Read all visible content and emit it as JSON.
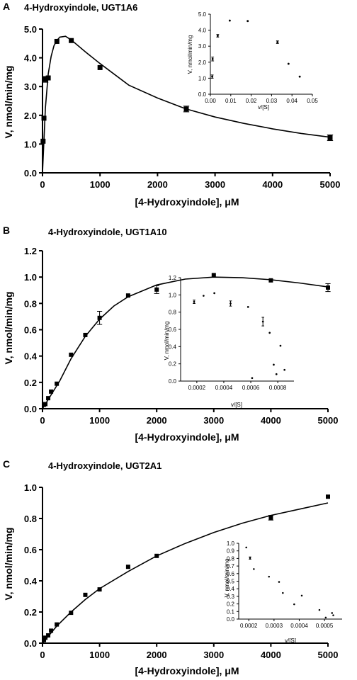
{
  "figure": {
    "panels": [
      {
        "letter": "A",
        "title": "4-Hydroxyindole, UGT1A6",
        "main": {
          "xlabel": "[4-Hydroxyindole], μM",
          "ylabel": "V, nmol/min/mg",
          "xticks": [
            "0",
            "1000",
            "2000",
            "3000",
            "4000",
            "5000"
          ],
          "yticks": [
            "0.0",
            "1.0",
            "2.0",
            "3.0",
            "4.0",
            "5.0"
          ]
        },
        "inset": {
          "xlabel": "v/[S]",
          "ylabel": "V, nmol/min/mg",
          "xticks": [
            "0.00",
            "0.01",
            "0.02",
            "0.03",
            "0.04",
            "0.05"
          ],
          "yticks": [
            "0.0",
            "1.0",
            "2.0",
            "3.0",
            "4.0",
            "5.0"
          ]
        }
      },
      {
        "letter": "B",
        "title": "4-Hydroxyindole, UGT1A10",
        "main": {
          "xlabel": "[4-Hydroxyindole], μM",
          "ylabel": "V, nmol/min/mg",
          "xticks": [
            "0",
            "1000",
            "2000",
            "3000",
            "4000",
            "5000"
          ],
          "yticks": [
            "0.0",
            "0.2",
            "0.4",
            "0.6",
            "0.8",
            "1.0",
            "1.2"
          ]
        },
        "inset": {
          "xlabel": "v/[S]",
          "ylabel": "V, nmol/min/mg",
          "xticks": [
            "0.0002",
            "0.0004",
            "0.0006",
            "0.0008"
          ],
          "yticks": [
            "0.0",
            "0.2",
            "0.4",
            "0.6",
            "0.8",
            "1.0",
            "1.2"
          ]
        }
      },
      {
        "letter": "C",
        "title": "4-Hydroxyindole, UGT2A1",
        "main": {
          "xlabel": "[4-Hydroxyindole], μM",
          "ylabel": "V, nmol/min/mg",
          "xticks": [
            "0",
            "1000",
            "2000",
            "3000",
            "4000",
            "5000"
          ],
          "yticks": [
            "0.0",
            "0.2",
            "0.4",
            "0.6",
            "0.8",
            "1.0"
          ]
        },
        "inset": {
          "xlabel": "v/[S]",
          "ylabel": "V, nmol/min/mg",
          "xticks": [
            "0.0002",
            "0.0003",
            "0.0004",
            "0.0005"
          ],
          "yticks": [
            "0.0",
            "0.1",
            "0.2",
            "0.3",
            "0.4",
            "0.5",
            "0.6",
            "0.7",
            "0.8",
            "0.9",
            "1.0"
          ]
        }
      }
    ]
  },
  "chart_data": [
    {
      "type": "scatter",
      "title": "4-Hydroxyindole, UGT1A6",
      "xlabel": "[4-Hydroxyindole], μM",
      "ylabel": "V, nmol/min/mg",
      "xlim": [
        0,
        5000
      ],
      "ylim": [
        0,
        5
      ],
      "grid": false,
      "series": [
        {
          "x": [
            10,
            25,
            50,
            100,
            250,
            500,
            1000,
            2500,
            5000
          ],
          "y": [
            1.1,
            1.9,
            3.25,
            3.3,
            4.57,
            4.6,
            3.66,
            2.22,
            1.22
          ],
          "error": [
            0.03,
            0.04,
            0.1,
            0.06,
            0.03,
            0.03,
            0.08,
            0.1,
            0.1
          ]
        }
      ],
      "fit_line": {
        "x": [
          0,
          50,
          100,
          150,
          200,
          250,
          300,
          400,
          500,
          750,
          1000,
          1500,
          2000,
          2500,
          3000,
          3500,
          4000,
          4500,
          5000
        ],
        "y": [
          0,
          2.26,
          3.44,
          4.05,
          4.42,
          4.6,
          4.72,
          4.75,
          4.62,
          4.2,
          3.8,
          3.05,
          2.6,
          2.22,
          1.94,
          1.72,
          1.53,
          1.37,
          1.24
        ]
      },
      "inset": {
        "type": "scatter",
        "xlabel": "v/[S]",
        "ylabel": "V, nmol/min/mg",
        "xlim": [
          0,
          0.05
        ],
        "ylim": [
          0,
          5
        ],
        "x": [
          0.0009,
          0.0011,
          0.0036,
          0.0095,
          0.0183,
          0.0329,
          0.0383,
          0.0438
        ],
        "y": [
          1.1,
          2.2,
          3.65,
          4.6,
          4.57,
          3.25,
          1.9,
          1.1
        ],
        "error": [
          0.1,
          0.12,
          0.08,
          0.02,
          0.02,
          0.08,
          0.02,
          0.02
        ]
      }
    },
    {
      "type": "scatter",
      "title": "4-Hydroxyindole, UGT1A10",
      "xlabel": "[4-Hydroxyindole], μM",
      "ylabel": "V, nmol/min/mg",
      "xlim": [
        0,
        5000
      ],
      "ylim": [
        0,
        1.2
      ],
      "grid": false,
      "series": [
        {
          "x": [
            25,
            50,
            100,
            150,
            250,
            500,
            750,
            1000,
            1500,
            2000,
            3000,
            4000,
            5000
          ],
          "y": [
            0.03,
            0.035,
            0.08,
            0.13,
            0.19,
            0.41,
            0.56,
            0.69,
            0.86,
            0.905,
            1.015,
            0.975,
            0.92
          ],
          "error": [
            0.005,
            0.005,
            0.005,
            0.005,
            0.005,
            0.005,
            0.01,
            0.05,
            0.01,
            0.03,
            0.01,
            0.01,
            0.03
          ]
        }
      ],
      "fit_line": {
        "x": [
          0,
          100,
          200,
          300,
          500,
          750,
          1000,
          1250,
          1500,
          2000,
          2500,
          3000,
          3500,
          4000,
          4500,
          5000
        ],
        "y": [
          0,
          0.07,
          0.14,
          0.21,
          0.38,
          0.55,
          0.68,
          0.78,
          0.85,
          0.94,
          0.985,
          1.0,
          0.995,
          0.98,
          0.955,
          0.925
        ]
      },
      "inset": {
        "type": "scatter",
        "xlabel": "v/[S]",
        "ylabel": "V, nmol/min/mg",
        "xlim": [
          8e-05,
          0.00092
        ],
        "ylim": [
          0,
          1.2
        ],
        "x": [
          0.00018,
          0.00025,
          0.00033,
          0.00045,
          0.00058,
          0.00061,
          0.00069,
          0.00074,
          0.00077,
          0.00079,
          0.00082,
          0.00085
        ],
        "y": [
          0.92,
          0.99,
          1.02,
          0.9,
          0.86,
          0.035,
          0.69,
          0.56,
          0.19,
          0.08,
          0.41,
          0.13
        ],
        "error": [
          0.02,
          0.01,
          0.01,
          0.03,
          0.01,
          0.005,
          0.05,
          0.01,
          0.005,
          0.005,
          0.005,
          0.005
        ]
      }
    },
    {
      "type": "scatter",
      "title": "4-Hydroxyindole, UGT2A1",
      "xlabel": "[4-Hydroxyindole], μM",
      "ylabel": "V, nmol/min/mg",
      "xlim": [
        0,
        5000
      ],
      "ylim": [
        0,
        1.0
      ],
      "grid": false,
      "series": [
        {
          "x": [
            25,
            50,
            100,
            150,
            250,
            500,
            750,
            1000,
            1500,
            2000,
            4000,
            5000
          ],
          "y": [
            0.02,
            0.035,
            0.05,
            0.08,
            0.12,
            0.195,
            0.31,
            0.345,
            0.49,
            0.56,
            0.805,
            0.94
          ],
          "error": [
            0.005,
            0.005,
            0.005,
            0.005,
            0.005,
            0.005,
            0.005,
            0.005,
            0.005,
            0.005,
            0.015,
            0.005
          ]
        }
      ],
      "fit_line": {
        "x": [
          0,
          250,
          500,
          750,
          1000,
          1500,
          2000,
          2500,
          3000,
          3500,
          4000,
          4500,
          5000
        ],
        "y": [
          0,
          0.11,
          0.2,
          0.28,
          0.35,
          0.46,
          0.56,
          0.64,
          0.71,
          0.77,
          0.82,
          0.86,
          0.9
        ]
      },
      "inset": {
        "type": "scatter",
        "xlabel": "v/[S]",
        "ylabel": "V, nmol/min/mg",
        "xlim": [
          0.00016,
          0.00057
        ],
        "ylim": [
          0,
          1.0
        ],
        "x": [
          0.00019,
          0.000205,
          0.00022,
          0.00028,
          0.00032,
          0.000335,
          0.00038,
          0.00041,
          0.00048,
          0.000505,
          0.00053,
          0.000535
        ],
        "y": [
          0.945,
          0.805,
          0.66,
          0.56,
          0.49,
          0.345,
          0.195,
          0.31,
          0.12,
          0.02,
          0.08,
          0.05
        ],
        "error": [
          0.01,
          0.015,
          0.01,
          0.005,
          0.005,
          0.005,
          0.005,
          0.005,
          0.005,
          0.005,
          0.005,
          0.005
        ]
      }
    }
  ]
}
